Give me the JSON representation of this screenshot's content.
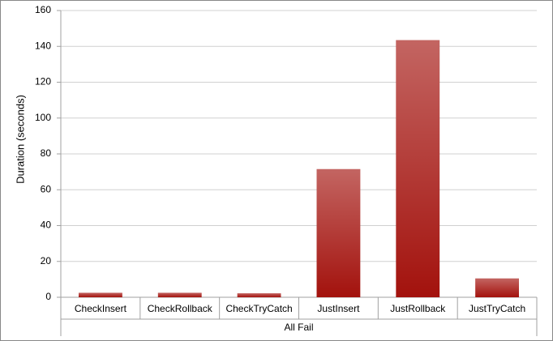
{
  "chart_data": {
    "type": "bar",
    "y_label": "Duration (seconds)",
    "x_label": "All Fail",
    "categories": [
      "CheckInsert",
      "CheckRollback",
      "CheckTryCatch",
      "JustInsert",
      "JustRollback",
      "JustTryCatch"
    ],
    "values": [
      2.5,
      2.5,
      2.2,
      71.5,
      143.5,
      10.5
    ],
    "color": "#a3120d",
    "ylim": [
      0,
      160
    ],
    "yticks": [
      0,
      20,
      40,
      60,
      80,
      100,
      120,
      140,
      160
    ],
    "grid": true
  }
}
